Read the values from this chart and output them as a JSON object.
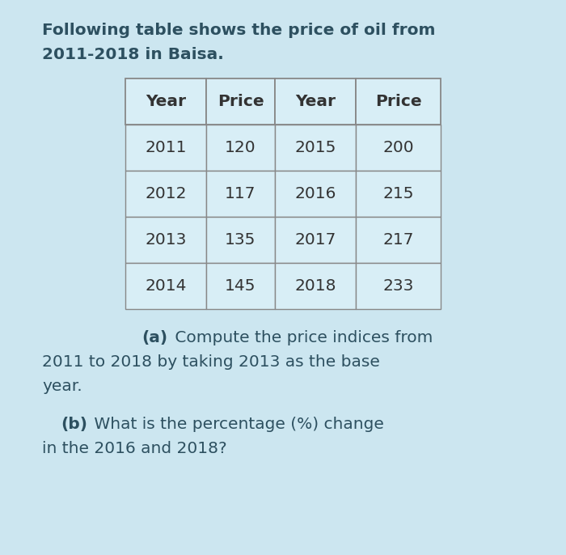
{
  "background_color": "#cce6f0",
  "text_color": "#2d5060",
  "table_text_color": "#333333",
  "table_bg_color": "#d8eef6",
  "table_border_color": "#888888",
  "intro_line1": "Following table shows the price of oil from",
  "intro_line2": "2011-2018 in Baisa.",
  "table_headers": [
    "Year",
    "Price",
    "Year",
    "Price"
  ],
  "table_rows": [
    [
      "2011",
      "120",
      "2015",
      "200"
    ],
    [
      "2012",
      "117",
      "2016",
      "215"
    ],
    [
      "2013",
      "135",
      "2017",
      "217"
    ],
    [
      "2014",
      "145",
      "2018",
      "233"
    ]
  ],
  "qa_bold": "(a)",
  "qa_rest_line1": " Compute the price indices from",
  "qa_rest_line2": "2011 to 2018 by taking 2013 as the base",
  "qa_rest_line3": "year.",
  "qb_bold": "(b)",
  "qb_rest_line1": " What is the percentage (%) change",
  "qb_rest_line2": "in the 2016 and 2018?",
  "fig_width": 7.0,
  "fig_height": 6.86,
  "dpi": 100
}
